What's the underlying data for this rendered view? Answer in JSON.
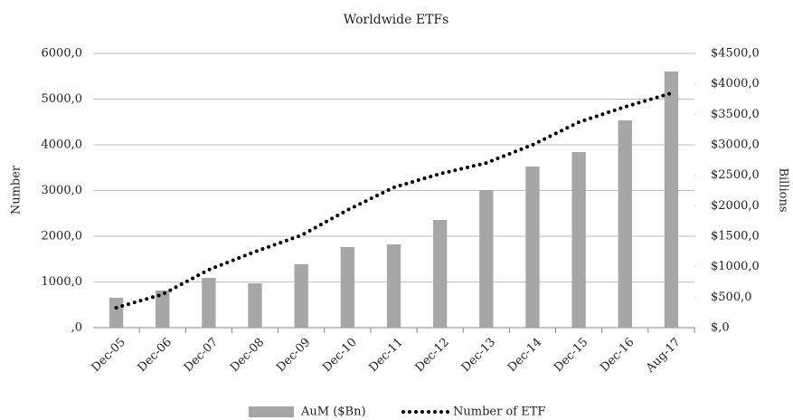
{
  "chart_data": {
    "type": "bar",
    "title": "Worldwide ETFs",
    "y_label": "Number",
    "y2_label": "Billions",
    "categories": [
      "Dec-05",
      "Dec-06",
      "Dec-07",
      "Dec-08",
      "Dec-09",
      "Dec-10",
      "Dec-11",
      "Dec-12",
      "Dec-13",
      "Dec-14",
      "Dec-15",
      "Dec-16",
      "Aug-17"
    ],
    "series": [
      {
        "name": "AuM ($Bn)",
        "type": "bar",
        "axis": "y2",
        "color": "#a6a6a6",
        "values": [
          490,
          609,
          817,
          728,
          1040,
          1322,
          1366,
          1767,
          2257,
          2644,
          2881,
          3401,
          4203
        ]
      },
      {
        "name": "Number of ETF",
        "type": "line",
        "color": "#000000",
        "values": [
          436,
          730,
          1267,
          1663,
          2020,
          2574,
          3069,
          3366,
          3604,
          4000,
          4495,
          4832,
          5129
        ]
      }
    ],
    "ylim": [
      0,
      6000
    ],
    "yticks": [
      {
        "value": 0,
        "label": ",0"
      },
      {
        "value": 1000,
        "label": "1000,0"
      },
      {
        "value": 2000,
        "label": "2000,0"
      },
      {
        "value": 3000,
        "label": "3000,0"
      },
      {
        "value": 4000,
        "label": "4000,0"
      },
      {
        "value": 5000,
        "label": "5000,0"
      },
      {
        "value": 6000,
        "label": "6000,0"
      }
    ],
    "y2lim": [
      0,
      4500
    ],
    "y2ticks": [
      {
        "value": 0,
        "label": "$,0"
      },
      {
        "value": 500,
        "label": "$500,0"
      },
      {
        "value": 1000,
        "label": "$1000,0"
      },
      {
        "value": 1500,
        "label": "$1500,0"
      },
      {
        "value": 2000,
        "label": "$2000,0"
      },
      {
        "value": 2500,
        "label": "$2500,0"
      },
      {
        "value": 3000,
        "label": "$3000,0"
      },
      {
        "value": 3500,
        "label": "$3500,0"
      },
      {
        "value": 4000,
        "label": "$4000,0"
      },
      {
        "value": 4500,
        "label": "$4500,0"
      }
    ],
    "grid": true,
    "legend": "bottom"
  }
}
